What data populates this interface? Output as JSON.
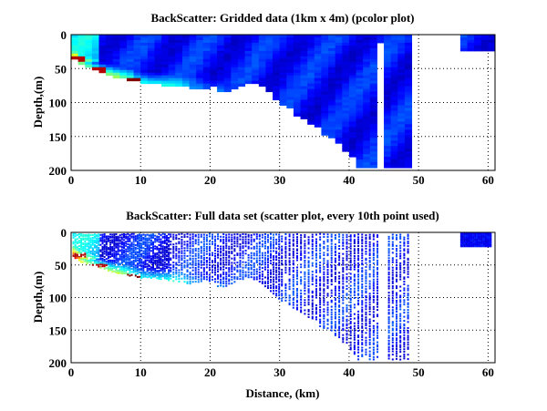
{
  "chart_data": [
    {
      "type": "heatmap",
      "title": "BackScatter: Gridded data (1km x 4m) (pcolor plot)",
      "xlabel": "",
      "ylabel": "Depth,(m)",
      "xlim": [
        0,
        61
      ],
      "ylim": [
        0,
        200
      ],
      "y_reversed": true,
      "grid": true,
      "cell_size": {
        "x_km": 1,
        "depth_m": 4
      },
      "xticks": [
        "0",
        "10",
        "20",
        "30",
        "40",
        "50",
        "60"
      ],
      "yticks": [
        "0",
        "50",
        "100",
        "150",
        "200"
      ],
      "colormap": "jet",
      "bottom_profile": {
        "x": [
          0,
          1,
          2,
          3,
          4,
          5,
          6,
          7,
          8,
          9,
          10,
          12,
          14,
          16,
          17,
          18,
          20,
          21,
          22,
          23,
          24,
          25,
          26,
          27,
          28,
          29,
          30,
          31,
          32,
          33,
          34,
          35,
          36,
          37,
          38,
          39,
          40,
          41,
          42,
          43,
          44,
          45,
          46,
          47,
          48,
          49
        ],
        "depth": [
          36,
          44,
          48,
          50,
          54,
          58,
          62,
          64,
          66,
          68,
          70,
          71,
          74,
          76,
          80,
          77,
          76,
          84,
          84,
          80,
          74,
          70,
          72,
          76,
          84,
          94,
          104,
          108,
          120,
          124,
          130,
          134,
          148,
          150,
          160,
          170,
          180,
          196,
          196,
          196,
          196,
          196,
          196,
          196,
          196,
          196
        ]
      },
      "gaps": [
        {
          "x": [
            44.5,
            45.5
          ],
          "depth": [
            12,
            196
          ]
        },
        {
          "x": [
            49.5,
            56.5
          ],
          "depth": [
            0,
            200
          ]
        },
        {
          "x": [
            56.5,
            61
          ],
          "depth": [
            24,
            200
          ]
        }
      ],
      "hotspots": [
        {
          "x": 1,
          "depth": 34,
          "value": 0.95
        },
        {
          "x": 4,
          "depth": 50,
          "value": 0.95
        },
        {
          "x": 9,
          "depth": 66,
          "value": 1.0
        }
      ]
    },
    {
      "type": "scatter",
      "title": "BackScatter: Full data set (scatter plot, every 10th point used)",
      "xlabel": "Distance, (km)",
      "ylabel": "Depth,(m)",
      "xlim": [
        0,
        61
      ],
      "ylim": [
        0,
        200
      ],
      "y_reversed": true,
      "grid": true,
      "xticks": [
        "0",
        "10",
        "20",
        "30",
        "40",
        "50",
        "60"
      ],
      "yticks": [
        "0",
        "50",
        "100",
        "150",
        "200"
      ],
      "colormap": "jet",
      "note_cluster": {
        "x": [
          56,
          60.5
        ],
        "depth": [
          0,
          22
        ]
      }
    }
  ]
}
